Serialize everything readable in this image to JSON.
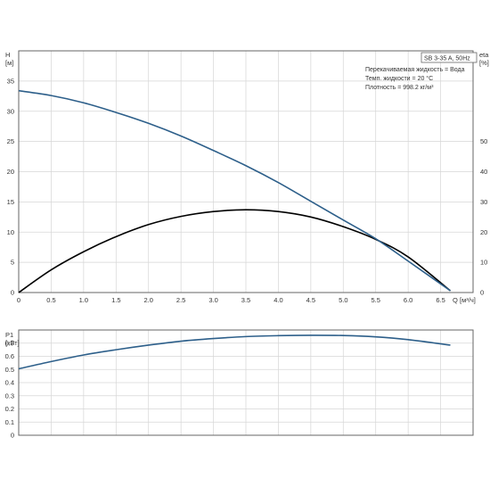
{
  "colors": {
    "head_curve": "#2d5f8a",
    "eta_curve": "#000000",
    "power_curve": "#2d5f8a",
    "grid": "#d6d6d6",
    "frame": "#666666"
  },
  "chart_data": [
    {
      "type": "line",
      "x_label": "Q",
      "x_unit": "[м³/ч]",
      "xlim": [
        0,
        7.0
      ],
      "x_ticks": [
        "0",
        "0.5",
        "1.0",
        "1.5",
        "2.0",
        "2.5",
        "3.0",
        "3.5",
        "4.0",
        "4.5",
        "5.0",
        "5.5",
        "6.0",
        "6.5"
      ],
      "y_left_label": "H",
      "y_left_unit": "[м]",
      "y_left_lim": [
        0,
        40
      ],
      "y_left_ticks": [
        "0",
        "5",
        "10",
        "15",
        "20",
        "25",
        "30",
        "35"
      ],
      "y_right_label": "eta",
      "y_right_unit": "[%]",
      "y_right_lim": [
        0,
        80
      ],
      "y_right_ticks": [
        "0",
        "10",
        "20",
        "30",
        "40",
        "50"
      ],
      "grid": true,
      "info_box": {
        "model": "SB 3-35 A, 50Hz",
        "lines": [
          "Перекачиваемая жидкость = Вода",
          "Темп. жидкости = 20 °C",
          "Плотность = 998.2 кг/м³"
        ]
      },
      "series": [
        {
          "axis": "left",
          "x": [
            0,
            0.5,
            1.0,
            1.5,
            2.0,
            2.5,
            3.0,
            3.5,
            4.0,
            4.5,
            5.0,
            5.5,
            6.0,
            6.65
          ],
          "y": [
            33.4,
            32.6,
            31.4,
            29.8,
            28.0,
            25.9,
            23.5,
            21.0,
            18.2,
            15.1,
            12.0,
            8.9,
            5.2,
            0.3
          ]
        },
        {
          "axis": "right",
          "x": [
            0,
            0.5,
            1.0,
            1.5,
            2.0,
            2.5,
            3.0,
            3.5,
            4.0,
            4.5,
            5.0,
            5.5,
            6.0,
            6.65
          ],
          "y": [
            0,
            7.5,
            13.5,
            18.5,
            22.5,
            25.2,
            26.8,
            27.4,
            26.8,
            25.0,
            21.8,
            17.6,
            11.8,
            0.6
          ]
        }
      ]
    },
    {
      "type": "line",
      "y_label": "P1",
      "y_unit": "[кВт]",
      "xlim": [
        0,
        7.0
      ],
      "ylim": [
        0,
        0.8
      ],
      "y_ticks": [
        "0",
        "0.1",
        "0.2",
        "0.3",
        "0.4",
        "0.5",
        "0.6",
        "0.7"
      ],
      "grid": true,
      "series": [
        {
          "x": [
            0,
            0.5,
            1.0,
            1.5,
            2.0,
            2.5,
            3.0,
            3.5,
            4.0,
            4.5,
            5.0,
            5.5,
            6.0,
            6.65
          ],
          "y": [
            0.505,
            0.56,
            0.61,
            0.65,
            0.685,
            0.715,
            0.735,
            0.75,
            0.757,
            0.76,
            0.758,
            0.748,
            0.727,
            0.685
          ]
        }
      ]
    }
  ]
}
